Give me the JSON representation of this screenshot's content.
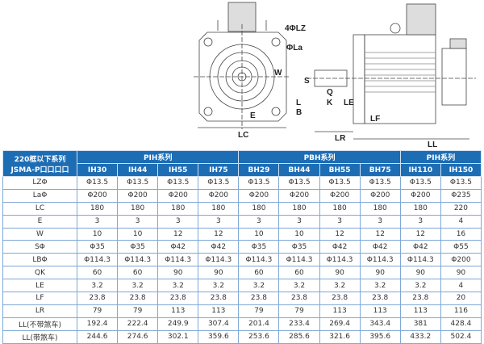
{
  "drawing": {
    "labels": {
      "lz": "4ΦLZ",
      "la": "ΦLa",
      "w": "W",
      "e": "E",
      "lc": "LC",
      "s": "S",
      "q": "Q",
      "k": "K",
      "l": "L",
      "b": "B",
      "le": "LE",
      "lf": "LF",
      "lr": "LR",
      "ll": "LL"
    }
  },
  "table": {
    "corner": [
      "220框以下系列",
      "JSMA-P口口口口"
    ],
    "groups": [
      "PIH系列",
      "PBH系列",
      "PIH系列"
    ],
    "models": [
      "IH30",
      "IH44",
      "IH55",
      "IH75",
      "BH29",
      "BH44",
      "BH55",
      "BH75",
      "IH110",
      "IH150"
    ],
    "rows": [
      {
        "label": "LZΦ",
        "values": [
          "Φ13.5",
          "Φ13.5",
          "Φ13.5",
          "Φ13.5",
          "Φ13.5",
          "Φ13.5",
          "Φ13.5",
          "Φ13.5",
          "Φ13.5",
          "Φ13.5"
        ]
      },
      {
        "label": "LaΦ",
        "values": [
          "Φ200",
          "Φ200",
          "Φ200",
          "Φ200",
          "Φ200",
          "Φ200",
          "Φ200",
          "Φ200",
          "Φ200",
          "Φ235"
        ]
      },
      {
        "label": "LC",
        "values": [
          "180",
          "180",
          "180",
          "180",
          "180",
          "180",
          "180",
          "180",
          "180",
          "220"
        ]
      },
      {
        "label": "E",
        "values": [
          "3",
          "3",
          "3",
          "3",
          "3",
          "3",
          "3",
          "3",
          "3",
          "4"
        ]
      },
      {
        "label": "W",
        "values": [
          "10",
          "10",
          "12",
          "12",
          "10",
          "10",
          "12",
          "12",
          "12",
          "16"
        ]
      },
      {
        "label": "SΦ",
        "values": [
          "Φ35",
          "Φ35",
          "Φ42",
          "Φ42",
          "Φ35",
          "Φ35",
          "Φ42",
          "Φ42",
          "Φ42",
          "Φ55"
        ]
      },
      {
        "label": "LBΦ",
        "values": [
          "Φ114.3",
          "Φ114.3",
          "Φ114.3",
          "Φ114.3",
          "Φ114.3",
          "Φ114.3",
          "Φ114.3",
          "Φ114.3",
          "Φ114.3",
          "Φ200"
        ]
      },
      {
        "label": "QK",
        "values": [
          "60",
          "60",
          "90",
          "90",
          "60",
          "60",
          "90",
          "90",
          "90",
          "90"
        ]
      },
      {
        "label": "LE",
        "values": [
          "3.2",
          "3.2",
          "3.2",
          "3.2",
          "3.2",
          "3.2",
          "3.2",
          "3.2",
          "3.2",
          "4"
        ]
      },
      {
        "label": "LF",
        "values": [
          "23.8",
          "23.8",
          "23.8",
          "23.8",
          "23.8",
          "23.8",
          "23.8",
          "23.8",
          "23.8",
          "20"
        ]
      },
      {
        "label": "LR",
        "values": [
          "79",
          "79",
          "113",
          "113",
          "79",
          "79",
          "113",
          "113",
          "113",
          "116"
        ]
      },
      {
        "label": "LL(不带煞车)",
        "values": [
          "192.4",
          "222.4",
          "249.9",
          "307.4",
          "201.4",
          "233.4",
          "269.4",
          "343.4",
          "381",
          "428.4"
        ]
      },
      {
        "label": "LL(带煞车)",
        "values": [
          "244.6",
          "274.6",
          "302.1",
          "359.6",
          "253.6",
          "285.6",
          "321.6",
          "395.6",
          "433.2",
          "502.4"
        ]
      }
    ]
  }
}
